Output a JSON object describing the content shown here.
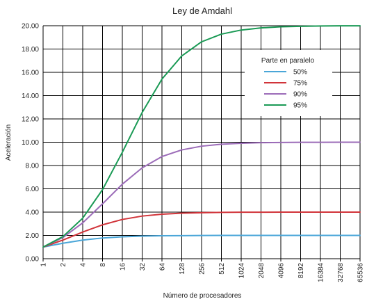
{
  "chart_data": {
    "type": "line",
    "title": "Ley de Amdahl",
    "xlabel": "Número de procesadores",
    "ylabel": "Aceleración",
    "x_scale": "log2",
    "x": [
      1,
      2,
      4,
      8,
      16,
      32,
      64,
      128,
      256,
      512,
      1024,
      2048,
      4096,
      8192,
      16384,
      32768,
      65536
    ],
    "x_tick_labels": [
      "1",
      "2",
      "4",
      "8",
      "16",
      "32",
      "64",
      "128",
      "256",
      "512",
      "1024",
      "2048",
      "4096",
      "8192",
      "16384",
      "32768",
      "65536"
    ],
    "ylim": [
      0,
      20
    ],
    "y_ticks": [
      0,
      2,
      4,
      6,
      8,
      10,
      12,
      14,
      16,
      18,
      20
    ],
    "y_tick_labels": [
      "0.00",
      "2.00",
      "4.00",
      "6.00",
      "8.00",
      "10.00",
      "12.00",
      "14.00",
      "16.00",
      "18.00",
      "20.00"
    ],
    "grid": true,
    "legend": {
      "title": "Parte en paralelo",
      "placement": "top-right"
    },
    "series": [
      {
        "name": "50%",
        "color": "#4aa6d8",
        "values": [
          1.0,
          1.33,
          1.6,
          1.78,
          1.88,
          1.94,
          1.97,
          1.98,
          1.99,
          2.0,
          2.0,
          2.0,
          2.0,
          2.0,
          2.0,
          2.0,
          2.0
        ]
      },
      {
        "name": "75%",
        "color": "#d1343a",
        "values": [
          1.0,
          1.6,
          2.29,
          2.91,
          3.37,
          3.66,
          3.82,
          3.91,
          3.95,
          3.98,
          3.99,
          3.99,
          4.0,
          4.0,
          4.0,
          4.0,
          4.0
        ]
      },
      {
        "name": "90%",
        "color": "#9b6bb8",
        "values": [
          1.0,
          1.82,
          3.08,
          4.71,
          6.4,
          7.8,
          8.77,
          9.34,
          9.66,
          9.83,
          9.91,
          9.96,
          9.98,
          9.99,
          9.99,
          10.0,
          10.0
        ]
      },
      {
        "name": "95%",
        "color": "#1a9a55",
        "values": [
          1.0,
          1.9,
          3.48,
          5.93,
          9.14,
          12.55,
          15.42,
          17.41,
          18.62,
          19.28,
          19.63,
          19.81,
          19.91,
          19.95,
          19.98,
          19.99,
          19.99
        ]
      }
    ]
  }
}
